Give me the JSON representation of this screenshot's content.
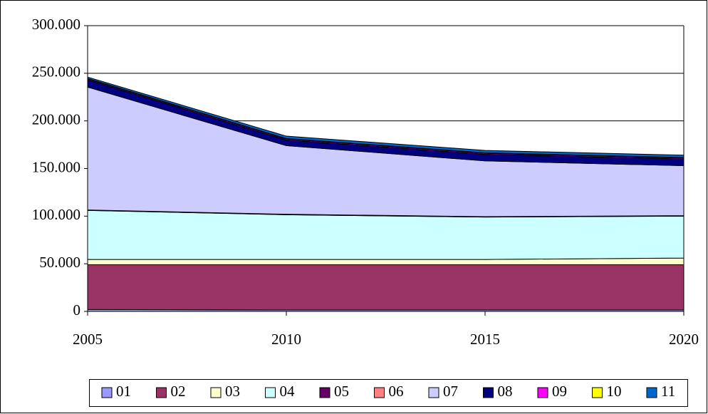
{
  "chart_data": {
    "type": "stacked_area",
    "x": [
      2005,
      2010,
      2015,
      2020
    ],
    "xlim": [
      2005,
      2020
    ],
    "xticks": [
      2005,
      2010,
      2015,
      2020
    ],
    "ylim": [
      0,
      300000
    ],
    "yticks": [
      0,
      {
        "value": 50000,
        "label": "50.000"
      },
      {
        "value": 100000,
        "label": "100.000"
      },
      {
        "value": 150000,
        "label": "150.000"
      },
      {
        "value": 200000,
        "label": "200.000"
      },
      {
        "value": 250000,
        "label": "250.000"
      },
      {
        "value": 300000,
        "label": "300.000"
      }
    ],
    "grid": true,
    "legend": "bottom",
    "series": [
      {
        "name": "01",
        "color": "#9999FF",
        "values": [
          2000,
          1500,
          1500,
          1500
        ]
      },
      {
        "name": "02",
        "color": "#993366",
        "values": [
          47000,
          47500,
          47500,
          47500
        ]
      },
      {
        "name": "03",
        "color": "#FFFFCC",
        "values": [
          5500,
          5500,
          5500,
          7000
        ]
      },
      {
        "name": "04",
        "color": "#CCFFFF",
        "values": [
          51500,
          47000,
          44500,
          44000
        ]
      },
      {
        "name": "05",
        "color": "#660066",
        "values": [
          500,
          500,
          500,
          500
        ]
      },
      {
        "name": "06",
        "color": "#FF8080",
        "values": [
          0,
          0,
          0,
          0
        ]
      },
      {
        "name": "07",
        "color": "#CCCCFF",
        "values": [
          129000,
          72000,
          58500,
          52500
        ]
      },
      {
        "name": "08",
        "color": "#000080",
        "values": [
          7500,
          6000,
          7000,
          7000
        ]
      },
      {
        "name": "09",
        "color": "#FF00FF",
        "values": [
          1000,
          1000,
          1000,
          1000
        ]
      },
      {
        "name": "10",
        "color": "#FFFF00",
        "values": [
          500,
          500,
          500,
          500
        ]
      },
      {
        "name": "11",
        "color": "#0066CC",
        "values": [
          1500,
          2500,
          2500,
          2500
        ]
      }
    ]
  }
}
